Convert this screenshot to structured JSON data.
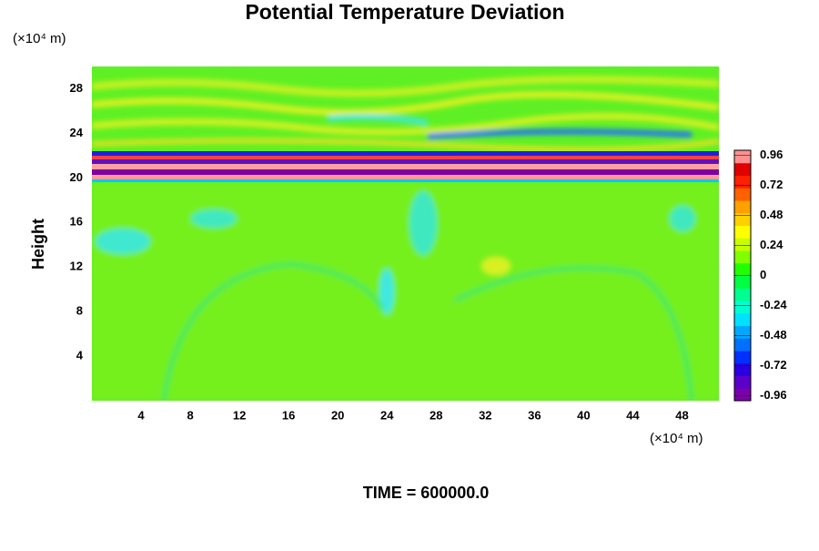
{
  "chart_data": {
    "type": "heatmap",
    "title": "Potential Temperature Deviation",
    "x_unit_label": "(×10⁴ m)",
    "y_unit_label": "(×10⁴ m)",
    "ylabel": "Height",
    "footer": "TIME = 600000.0",
    "xlim": [
      0,
      51
    ],
    "xticks": [
      4,
      8,
      12,
      16,
      20,
      24,
      28,
      32,
      36,
      40,
      44,
      48
    ],
    "ylim": [
      0,
      30
    ],
    "yticks": [
      4,
      8,
      12,
      16,
      20,
      24,
      28
    ],
    "clim": [
      -1,
      1
    ],
    "cticks": [
      -0.96,
      -0.72,
      -0.48,
      -0.24,
      0,
      0.24,
      0.48,
      0.72,
      0.96
    ],
    "colorbar_colors": [
      "#7b00a8",
      "#5a00c8",
      "#2a00e0",
      "#0030ff",
      "#0070ff",
      "#00a8ff",
      "#00e0ff",
      "#00ffd0",
      "#00ff90",
      "#00ff40",
      "#20ff00",
      "#80ff00",
      "#c8ff00",
      "#ffff00",
      "#ffd000",
      "#ffa000",
      "#ff6000",
      "#ff2000",
      "#e00000",
      "#ff9090"
    ],
    "grid": false
  }
}
